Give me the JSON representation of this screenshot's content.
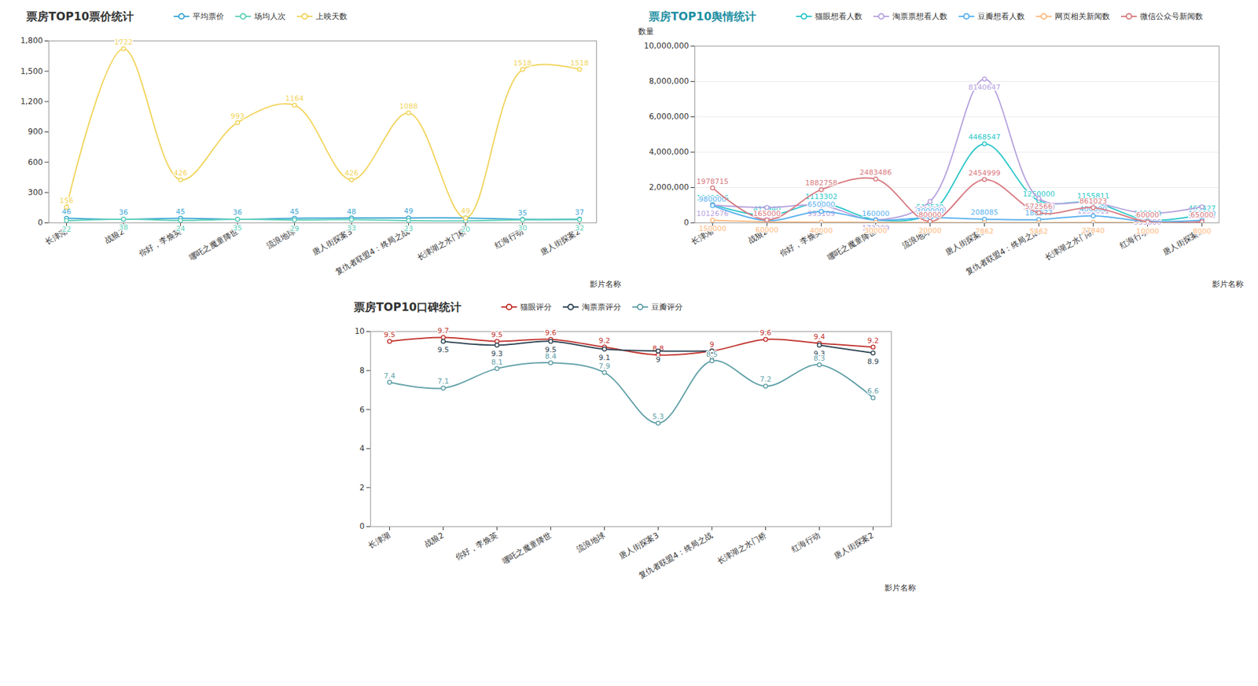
{
  "chart_data": [
    {
      "type": "line",
      "title": "票房TOP10票价统计",
      "x_label": "影片名称",
      "legend": "top",
      "line_style": "smooth",
      "marker": "circle",
      "data_labels": true,
      "grid": false,
      "categories": [
        "长津湖",
        "战狼2",
        "你好，李焕英",
        "哪吒之魔童降世",
        "流浪地球",
        "唐人街探案3",
        "复仇者联盟4：终局之战",
        "长津湖之水门桥",
        "红海行动",
        "唐人街探案2"
      ],
      "ylim": [
        0,
        1800
      ],
      "yticks": [
        0,
        300,
        600,
        900,
        {
          "value": 1200,
          "label": "1,200"
        },
        {
          "value": 1500,
          "label": "1,500"
        },
        {
          "value": 1800,
          "label": "1,800"
        }
      ],
      "series": [
        {
          "name": "平均票价",
          "color": "#3fa7d6",
          "values": [
            46,
            36,
            45,
            36,
            45,
            48,
            49,
            49,
            35,
            37
          ]
        },
        {
          "name": "场均人次",
          "color": "#5fd0b8",
          "values": [
            22,
            38,
            24,
            35,
            29,
            33,
            23,
            20,
            30,
            32
          ]
        },
        {
          "name": "上映天数",
          "color": "#f2d45c",
          "values": [
            156,
            1722,
            426,
            993,
            1164,
            426,
            1088,
            49,
            1518,
            1518
          ]
        }
      ]
    },
    {
      "type": "line",
      "title": "票房TOP10舆情统计",
      "x_label": "影片名称",
      "y_label": "数量",
      "legend": "top",
      "line_style": "smooth",
      "marker": "circle",
      "data_labels": true,
      "grid": true,
      "categories": [
        "长津湖",
        "战狼2",
        "你好，李焕英",
        "哪吒之魔童降世",
        "流浪地球",
        "唐人街探案3",
        "复仇者联盟4：终局之战",
        "长津湖之水门桥",
        "红海行动",
        "唐人街探案2"
      ],
      "ylim": [
        0,
        10000000
      ],
      "yticks": [
        0,
        {
          "value": 2000000,
          "label": "2,000,000"
        },
        {
          "value": 4000000,
          "label": "4,000,000"
        },
        {
          "value": 6000000,
          "label": "6,000,000"
        },
        {
          "value": 8000000,
          "label": "8,000,000"
        },
        {
          "value": 10000000,
          "label": "10,000,000"
        }
      ],
      "series": [
        {
          "name": "猫眼想看人数",
          "color": "#2ec7c9",
          "values": [
            1042616,
            411940,
            1113302,
            179129,
            512530,
            4468547,
            1250000,
            1155811,
            163340,
            463427
          ]
        },
        {
          "name": "淘票票想看人数",
          "color": "#b6a2de",
          "values": [
            1012676,
            865905,
            993109,
            173299,
            1210000,
            8140647,
            1390000,
            1155011,
            533886,
            905270
          ]
        },
        {
          "name": "豆瓣想看人数",
          "color": "#5ab1ef",
          "values": [
            980000,
            125649,
            650000,
            160000,
            300000,
            208085,
            188977,
            400000,
            80000,
            150000
          ]
        },
        {
          "name": "网页相关新闻数",
          "color": "#ffb980",
          "values": [
            150000,
            60000,
            40000,
            30000,
            20000,
            7862,
            5462,
            27840,
            10000,
            8000
          ]
        },
        {
          "name": "微信公众号新闻数",
          "color": "#d87a80",
          "values": [
            1978715,
            165000,
            1882758,
            2483486,
            80000,
            2454999,
            572566,
            861023,
            60000,
            65000
          ]
        }
      ]
    },
    {
      "type": "line",
      "title": "票房TOP10口碑统计",
      "x_label": "影片名称",
      "legend": "top",
      "line_style": "smooth",
      "marker": "circle",
      "data_labels": true,
      "grid": false,
      "categories": [
        "长津湖",
        "战狼2",
        "你好，李焕英",
        "哪吒之魔童降世",
        "流浪地球",
        "唐人街探案3",
        "复仇者联盟4：终局之战",
        "长津湖之水门桥",
        "红海行动",
        "唐人街探案2"
      ],
      "ylim": [
        0,
        10
      ],
      "yticks": [
        0,
        2,
        4,
        6,
        8,
        10
      ],
      "series": [
        {
          "name": "猫眼评分",
          "color": "#c23531",
          "values": [
            9.5,
            9.7,
            9.5,
            9.6,
            9.2,
            8.8,
            9.0,
            9.6,
            9.4,
            9.2
          ]
        },
        {
          "name": "淘票票评分",
          "color": "#2f4554",
          "values": [
            null,
            9.5,
            9.3,
            9.5,
            9.1,
            9.0,
            9.0,
            null,
            9.3,
            8.9
          ]
        },
        {
          "name": "豆瓣评分",
          "color": "#61a0a8",
          "values": [
            7.4,
            7.1,
            8.1,
            8.4,
            7.9,
            5.3,
            8.5,
            7.2,
            8.3,
            6.6
          ]
        }
      ]
    }
  ]
}
